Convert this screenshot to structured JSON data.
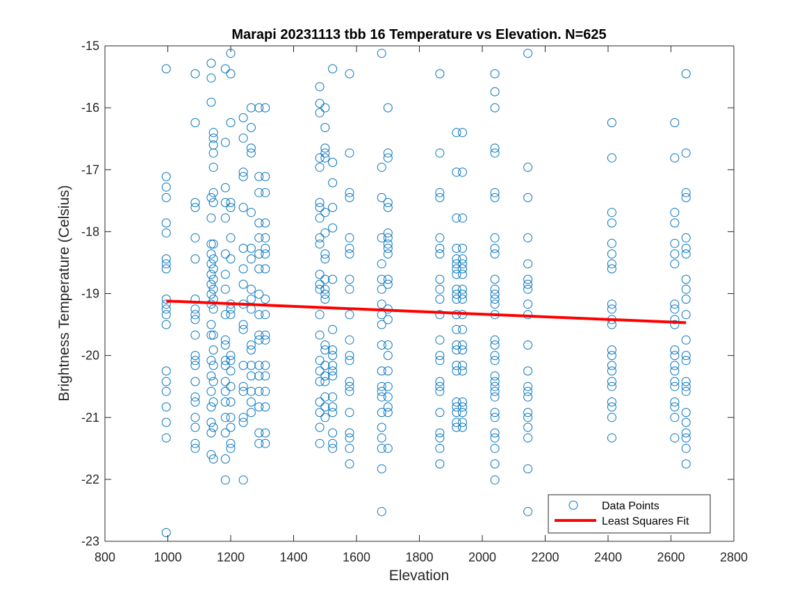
{
  "chart_data": {
    "type": "scatter",
    "title": "Marapi 20231113 tbb 16 Temperature vs Elevation. N=625",
    "xlabel": "Elevation",
    "ylabel": "Brightness Temperature (Celsius)",
    "xlim": [
      800,
      2800
    ],
    "ylim": [
      -23,
      -15
    ],
    "xticks": [
      800,
      1000,
      1200,
      1400,
      1600,
      1800,
      2000,
      2200,
      2400,
      2600,
      2800
    ],
    "yticks": [
      -23,
      -22,
      -21,
      -20,
      -19,
      -18,
      -17,
      -16,
      -15
    ],
    "grid": false,
    "legend_position": "bottom-right",
    "colors": {
      "points": "#0072BD",
      "fit": "#FF0000"
    },
    "series": [
      {
        "name": "Data Points",
        "kind": "scatter",
        "columns": [
          {
            "x": 995,
            "y": [
              -15.37,
              -17.11,
              -17.28,
              -17.45,
              -17.86,
              -18.02,
              -18.44,
              -18.52,
              -18.6,
              -19.09,
              -19.17,
              -19.25,
              -19.34,
              -19.5,
              -20.25,
              -20.42,
              -20.58,
              -20.83,
              -21.08,
              -21.33,
              -22.86
            ]
          },
          {
            "x": 1087,
            "y": [
              -15.45,
              -16.24,
              -17.53,
              -17.61,
              -18.1,
              -18.44,
              -19.09,
              -19.25,
              -19.34,
              -19.42,
              -19.67,
              -20.0,
              -20.08,
              -20.16,
              -20.42,
              -20.67,
              -20.75,
              -21.0,
              -21.16,
              -21.42,
              -21.5
            ]
          },
          {
            "x": 1138,
            "y": [
              -15.28,
              -15.52,
              -15.91,
              -17.45,
              -17.78,
              -18.2,
              -18.36,
              -18.52,
              -18.69,
              -18.85,
              -19.01,
              -19.17,
              -19.5,
              -19.67,
              -20.08,
              -20.33,
              -20.58,
              -20.83,
              -21.08,
              -21.25,
              -21.6
            ]
          },
          {
            "x": 1145,
            "y": [
              -16.4,
              -16.49,
              -16.6,
              -16.73,
              -16.96,
              -17.37,
              -17.53,
              -18.2,
              -18.44,
              -18.6,
              -18.77,
              -18.93,
              -19.09,
              -19.25,
              -19.67,
              -19.91,
              -20.16,
              -20.42,
              -20.75,
              -21.16,
              -21.67
            ]
          },
          {
            "x": 1183,
            "y": [
              -15.37,
              -16.56,
              -17.29,
              -17.53,
              -17.78,
              -18.36,
              -18.69,
              -18.93,
              -19.34,
              -19.75,
              -19.83,
              -20.08,
              -20.16,
              -20.42,
              -20.58,
              -20.75,
              -21.0,
              -21.25,
              -21.67,
              -22.01
            ]
          },
          {
            "x": 1200,
            "y": [
              -15.12,
              -15.45,
              -16.24,
              -17.53,
              -17.61,
              -18.1,
              -18.44,
              -19.17,
              -19.25,
              -19.34,
              -20.0,
              -20.08,
              -20.25,
              -20.5,
              -20.75,
              -21.0,
              -21.16,
              -21.42,
              -21.5
            ]
          },
          {
            "x": 1240,
            "y": [
              -16.16,
              -16.49,
              -17.04,
              -17.11,
              -17.61,
              -18.27,
              -18.6,
              -18.85,
              -19.17,
              -19.5,
              -19.58,
              -20.16,
              -20.5,
              -20.58,
              -21.0,
              -21.08,
              -22.01
            ]
          },
          {
            "x": 1265,
            "y": [
              -16.0,
              -16.32,
              -16.65,
              -16.73,
              -17.69,
              -18.27,
              -18.44,
              -18.93,
              -19.09,
              -19.25,
              -19.83,
              -19.91,
              -20.16,
              -20.33,
              -20.58,
              -20.75,
              -20.92
            ]
          },
          {
            "x": 1290,
            "y": [
              -16.0,
              -17.11,
              -17.37,
              -17.86,
              -18.1,
              -18.36,
              -18.6,
              -19.01,
              -19.34,
              -19.67,
              -19.75,
              -20.16,
              -20.33,
              -20.58,
              -20.83,
              -21.25,
              -21.42
            ]
          },
          {
            "x": 1310,
            "y": [
              -16.0,
              -17.11,
              -17.37,
              -17.86,
              -18.1,
              -18.27,
              -18.36,
              -18.6,
              -19.09,
              -19.34,
              -19.67,
              -19.75,
              -20.16,
              -20.33,
              -20.58,
              -20.83,
              -21.25,
              -21.42
            ]
          },
          {
            "x": 1483,
            "y": [
              -15.66,
              -15.93,
              -16.08,
              -16.81,
              -16.96,
              -17.53,
              -17.61,
              -17.78,
              -18.1,
              -18.2,
              -18.69,
              -18.85,
              -18.93,
              -19.34,
              -19.67,
              -20.08,
              -20.25,
              -20.42,
              -20.75,
              -20.92,
              -21.16,
              -21.42
            ]
          },
          {
            "x": 1500,
            "y": [
              -16.0,
              -16.32,
              -16.65,
              -16.73,
              -16.81,
              -17.69,
              -18.02,
              -18.36,
              -18.44,
              -18.77,
              -18.93,
              -19.01,
              -19.09,
              -19.83,
              -19.91,
              -20.16,
              -20.33,
              -20.42,
              -20.67,
              -20.83,
              -21.0
            ]
          },
          {
            "x": 1524,
            "y": [
              -15.37,
              -16.88,
              -17.21,
              -17.61,
              -17.94,
              -18.77,
              -19.58,
              -19.91,
              -20.0,
              -20.16,
              -20.25,
              -20.33,
              -20.67,
              -20.83,
              -20.92,
              -21.25,
              -21.42,
              -21.5
            ]
          },
          {
            "x": 1578,
            "y": [
              -15.45,
              -16.73,
              -17.37,
              -17.45,
              -18.1,
              -18.27,
              -18.36,
              -18.77,
              -18.93,
              -19.34,
              -19.75,
              -20.0,
              -20.08,
              -20.42,
              -20.5,
              -20.58,
              -20.92,
              -21.25,
              -21.33,
              -21.5,
              -21.75
            ]
          },
          {
            "x": 1680,
            "y": [
              -15.12,
              -16.96,
              -17.45,
              -18.1,
              -18.52,
              -18.77,
              -18.93,
              -19.17,
              -19.34,
              -19.5,
              -19.83,
              -20.25,
              -20.5,
              -20.58,
              -20.67,
              -20.92,
              -21.16,
              -21.33,
              -21.5,
              -21.83,
              -22.52
            ]
          },
          {
            "x": 1700,
            "y": [
              -16.0,
              -16.73,
              -16.81,
              -17.53,
              -17.61,
              -18.02,
              -18.1,
              -18.2,
              -18.27,
              -18.36,
              -18.77,
              -18.85,
              -19.25,
              -19.42,
              -19.83,
              -20.0,
              -20.25,
              -20.5,
              -20.67,
              -20.83,
              -20.92,
              -21.5
            ]
          },
          {
            "x": 1865,
            "y": [
              -15.45,
              -16.73,
              -17.37,
              -17.45,
              -18.1,
              -18.27,
              -18.36,
              -18.77,
              -18.93,
              -19.09,
              -19.34,
              -19.75,
              -20.0,
              -20.08,
              -20.42,
              -20.5,
              -20.58,
              -20.92,
              -21.25,
              -21.33,
              -21.5,
              -21.75
            ]
          },
          {
            "x": 1918,
            "y": [
              -16.4,
              -17.04,
              -17.78,
              -18.27,
              -18.44,
              -18.52,
              -18.6,
              -18.69,
              -18.93,
              -19.01,
              -19.09,
              -19.34,
              -19.58,
              -19.83,
              -19.91,
              -20.16,
              -20.25,
              -20.75,
              -20.83,
              -20.92,
              -21.08,
              -21.16
            ]
          },
          {
            "x": 1937,
            "y": [
              -16.4,
              -17.04,
              -17.78,
              -18.27,
              -18.44,
              -18.52,
              -18.6,
              -18.69,
              -18.93,
              -19.01,
              -19.09,
              -19.34,
              -19.58,
              -19.83,
              -19.91,
              -20.16,
              -20.25,
              -20.75,
              -20.83,
              -20.92,
              -21.08,
              -21.16
            ]
          },
          {
            "x": 2040,
            "y": [
              -15.45,
              -15.74,
              -16.0,
              -16.65,
              -16.73,
              -17.37,
              -17.45,
              -18.1,
              -18.27,
              -18.36,
              -18.77,
              -18.93,
              -19.01,
              -19.09,
              -19.17,
              -19.34,
              -19.75,
              -19.83,
              -20.0,
              -20.08,
              -20.33,
              -20.42,
              -20.5,
              -20.58,
              -20.67,
              -20.92,
              -21.0,
              -21.25,
              -21.33,
              -21.5,
              -21.75,
              -22.01
            ]
          },
          {
            "x": 2145,
            "y": [
              -15.12,
              -16.96,
              -17.45,
              -18.1,
              -18.52,
              -18.77,
              -18.85,
              -18.93,
              -19.17,
              -19.34,
              -19.83,
              -20.25,
              -20.5,
              -20.58,
              -20.67,
              -20.92,
              -21.0,
              -21.16,
              -21.33,
              -21.83,
              -22.52
            ]
          },
          {
            "x": 2412,
            "y": [
              -16.24,
              -16.81,
              -17.69,
              -17.86,
              -18.19,
              -18.36,
              -18.52,
              -18.6,
              -19.17,
              -19.25,
              -19.42,
              -19.5,
              -19.91,
              -20.0,
              -20.16,
              -20.25,
              -20.42,
              -20.5,
              -20.75,
              -20.83,
              -21.0,
              -21.33
            ]
          },
          {
            "x": 2612,
            "y": [
              -16.24,
              -16.81,
              -17.69,
              -17.86,
              -18.19,
              -18.36,
              -18.52,
              -19.17,
              -19.25,
              -19.42,
              -19.5,
              -19.91,
              -20.0,
              -20.16,
              -20.25,
              -20.42,
              -20.5,
              -20.75,
              -20.83,
              -21.0,
              -21.33
            ]
          },
          {
            "x": 2648,
            "y": [
              -15.45,
              -16.73,
              -17.37,
              -17.45,
              -18.1,
              -18.27,
              -18.36,
              -18.77,
              -18.93,
              -19.09,
              -19.34,
              -19.75,
              -20.0,
              -20.08,
              -20.42,
              -20.5,
              -20.58,
              -20.92,
              -21.08,
              -21.25,
              -21.33,
              -21.5,
              -21.75
            ]
          }
        ]
      },
      {
        "name": "Least Squares Fit",
        "kind": "line",
        "x": [
          995,
          2648
        ],
        "y": [
          -19.12,
          -19.47
        ]
      }
    ]
  }
}
